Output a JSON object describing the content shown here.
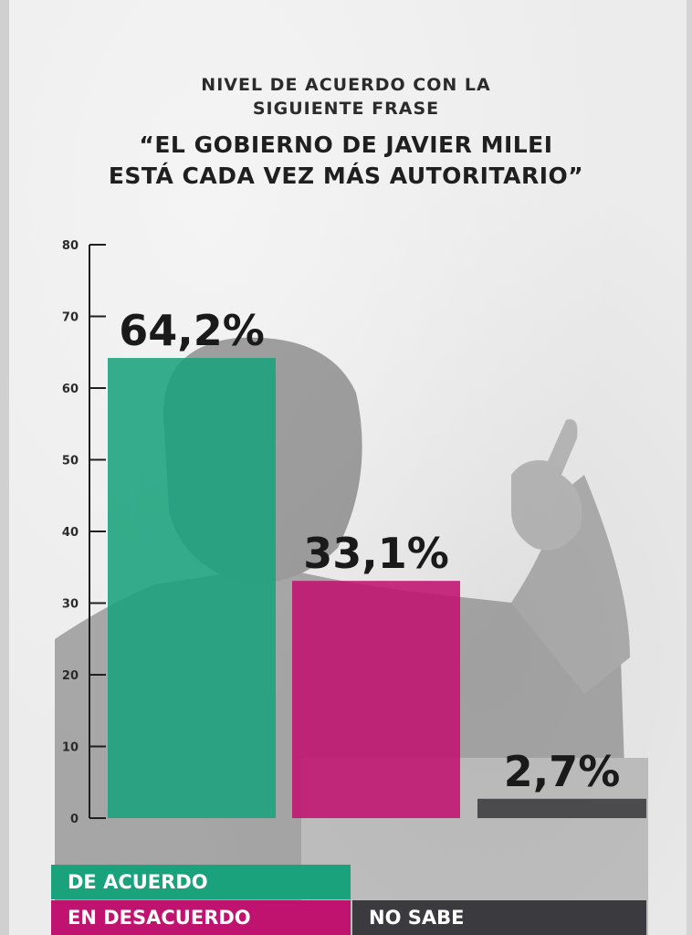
{
  "title_small": [
    "NIVEL DE ACUERDO CON LA",
    "SIGUIENTE FRASE"
  ],
  "title_quote": [
    "“EL GOBIERNO DE JAVIER MILEI",
    "ESTÁ CADA VEZ MÁS AUTORITARIO”"
  ],
  "chart_data": {
    "type": "bar",
    "categories": [
      "DE ACUERDO",
      "EN DESACUERDO",
      "NO SABE"
    ],
    "values": [
      64.2,
      33.1,
      2.7
    ],
    "data_labels": [
      "64,2%",
      "33,1%",
      "2,7%"
    ],
    "colors": [
      "#1aa27c",
      "#c0126f",
      "#3b3b3f"
    ],
    "ylim": [
      0,
      80
    ],
    "yticks": [
      0,
      10,
      20,
      30,
      40,
      50,
      60,
      70,
      80
    ],
    "legend_placement": "bottom",
    "grid": false
  },
  "legend": {
    "de_acuerdo": "DE ACUERDO",
    "en_desacuerdo": "EN DESACUERDO",
    "no_sabe": "NO SABE"
  }
}
